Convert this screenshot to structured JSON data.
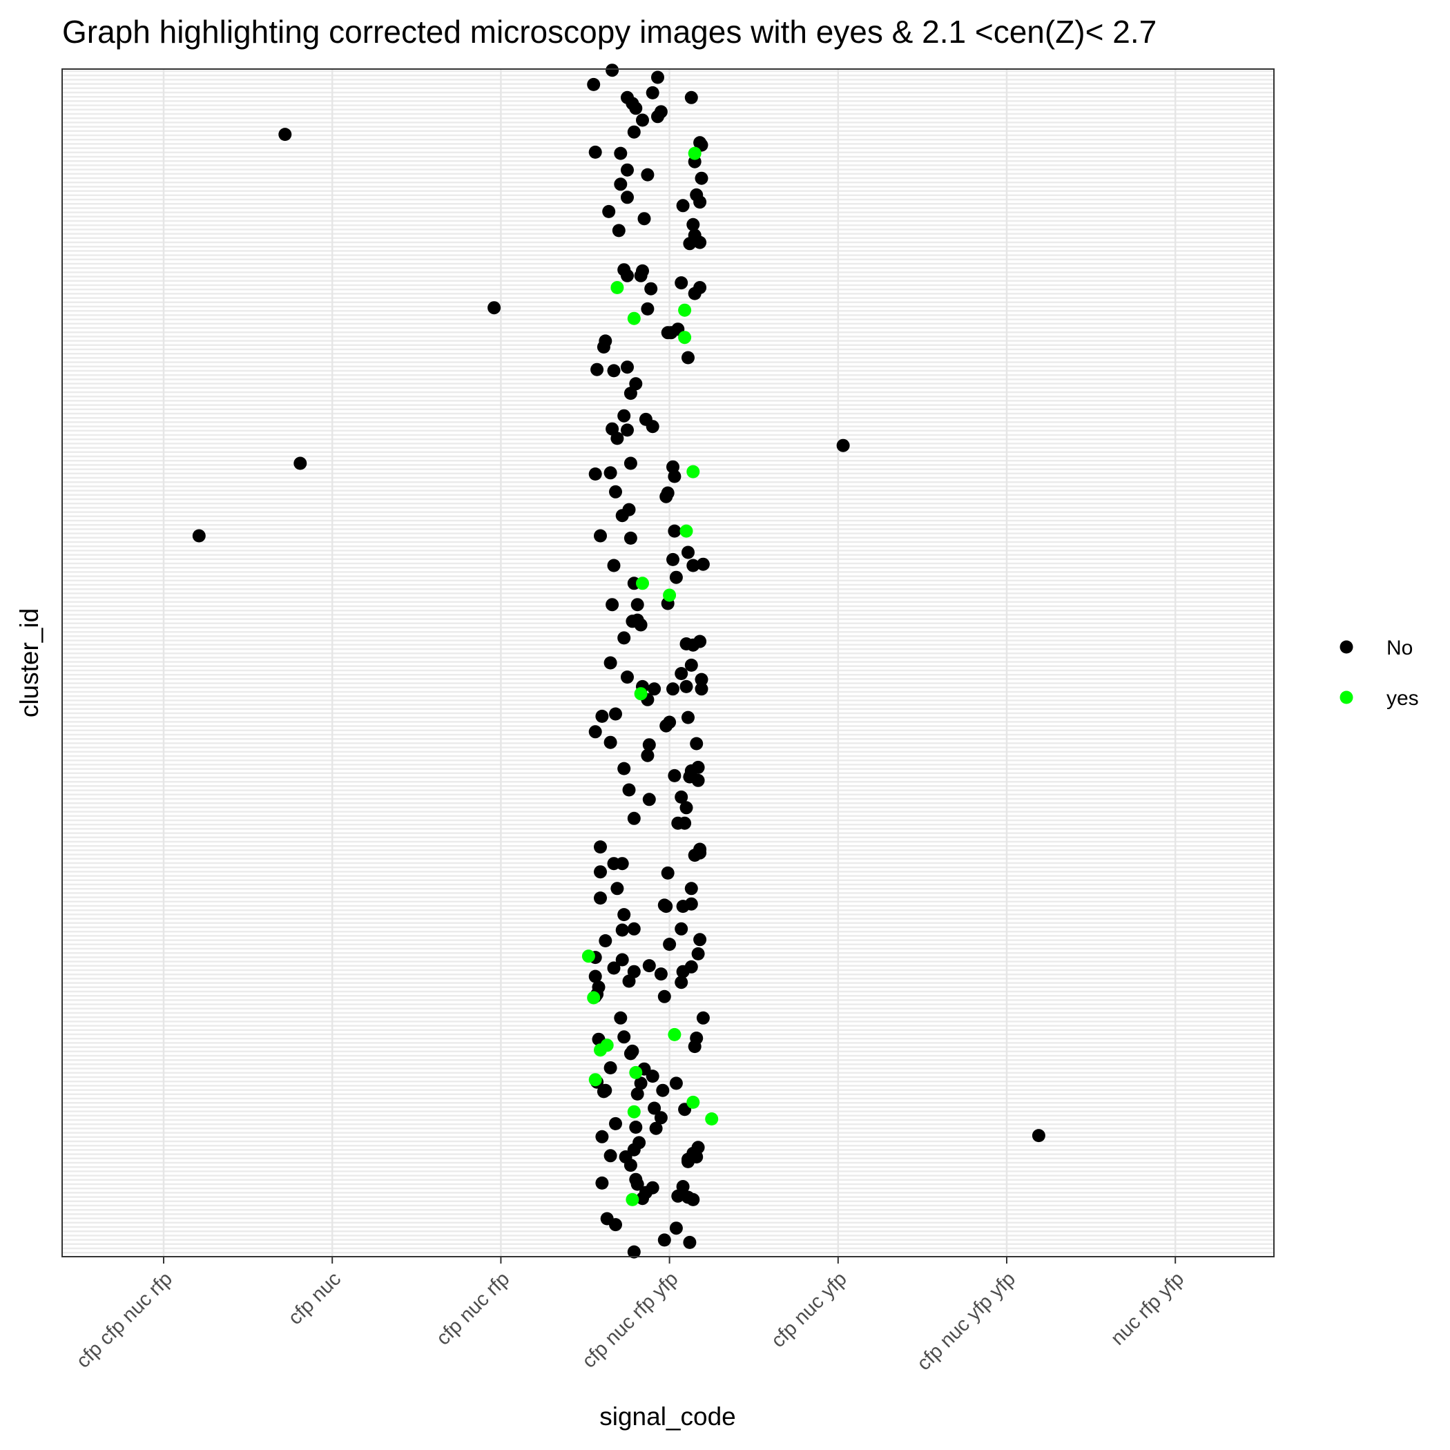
{
  "chart_data": {
    "type": "scatter",
    "title": "Graph highlighting corrected microscopy images with eyes &  2.1 <cen(Z)< 2.7",
    "xlabel": "signal_code",
    "ylabel": "cluster_id",
    "categories": [
      "cfp cfp nuc rfp",
      "cfp nuc",
      "cfp nuc rfp",
      "cfp nuc rfp yfp",
      "cfp nuc yfp",
      "cfp nuc yfp yfp",
      "nuc rfp yfp"
    ],
    "ylim": [
      0,
      1
    ],
    "y_tick_labels_shown": false,
    "grid": true,
    "legend_position": "right",
    "legend": [
      {
        "label": "No",
        "color": "#000000"
      },
      {
        "label": "yes",
        "color": "#00ff00"
      }
    ],
    "series": [
      {
        "name": "No",
        "color": "#000000",
        "points": [
          [
            0.21,
            0.607
          ],
          [
            0.72,
            0.945
          ],
          [
            0.81,
            0.668
          ],
          [
            1.96,
            0.799
          ],
          [
            2.77,
            0.668
          ],
          [
            4.03,
            0.683
          ],
          [
            5.19,
            0.102
          ],
          [
            2.66,
            0.999
          ],
          [
            2.55,
            0.987
          ],
          [
            2.93,
            0.993
          ],
          [
            2.75,
            0.976
          ],
          [
            2.9,
            0.98
          ],
          [
            2.8,
            0.967
          ],
          [
            2.95,
            0.964
          ],
          [
            2.93,
            0.96
          ],
          [
            2.78,
            0.971
          ],
          [
            2.79,
            0.947
          ],
          [
            2.84,
            0.957
          ],
          [
            3.13,
            0.976
          ],
          [
            3.18,
            0.938
          ],
          [
            3.19,
            0.936
          ],
          [
            2.56,
            0.93
          ],
          [
            2.71,
            0.929
          ],
          [
            3.15,
            0.922
          ],
          [
            2.75,
            0.915
          ],
          [
            2.71,
            0.903
          ],
          [
            2.87,
            0.911
          ],
          [
            2.75,
            0.892
          ],
          [
            3.19,
            0.908
          ],
          [
            2.64,
            0.88
          ],
          [
            3.08,
            0.885
          ],
          [
            3.16,
            0.894
          ],
          [
            3.18,
            0.888
          ],
          [
            2.85,
            0.874
          ],
          [
            3.14,
            0.869
          ],
          [
            2.7,
            0.864
          ],
          [
            3.15,
            0.86
          ],
          [
            3.18,
            0.854
          ],
          [
            3.12,
            0.853
          ],
          [
            2.73,
            0.831
          ],
          [
            2.84,
            0.83
          ],
          [
            2.83,
            0.826
          ],
          [
            2.75,
            0.826
          ],
          [
            3.07,
            0.82
          ],
          [
            3.15,
            0.811
          ],
          [
            2.89,
            0.815
          ],
          [
            3.18,
            0.816
          ],
          [
            2.87,
            0.798
          ],
          [
            3.05,
            0.781
          ],
          [
            3.01,
            0.778
          ],
          [
            3.11,
            0.757
          ],
          [
            2.57,
            0.747
          ],
          [
            2.67,
            0.746
          ],
          [
            2.61,
            0.766
          ],
          [
            2.8,
            0.735
          ],
          [
            2.62,
            0.771
          ],
          [
            2.99,
            0.778
          ],
          [
            2.75,
            0.749
          ],
          [
            2.77,
            0.727
          ],
          [
            2.73,
            0.708
          ],
          [
            2.86,
            0.705
          ],
          [
            2.66,
            0.697
          ],
          [
            2.75,
            0.696
          ],
          [
            2.69,
            0.689
          ],
          [
            2.9,
            0.699
          ],
          [
            3.02,
            0.665
          ],
          [
            2.56,
            0.659
          ],
          [
            2.65,
            0.66
          ],
          [
            2.68,
            0.644
          ],
          [
            2.76,
            0.629
          ],
          [
            2.72,
            0.624
          ],
          [
            2.77,
            0.605
          ],
          [
            2.59,
            0.607
          ],
          [
            3.03,
            0.611
          ],
          [
            3.03,
            0.657
          ],
          [
            2.98,
            0.64
          ],
          [
            2.99,
            0.643
          ],
          [
            3.11,
            0.593
          ],
          [
            3.14,
            0.582
          ],
          [
            3.02,
            0.587
          ],
          [
            2.67,
            0.582
          ],
          [
            3.04,
            0.572
          ],
          [
            2.79,
            0.567
          ],
          [
            3.2,
            0.583
          ],
          [
            2.81,
            0.549
          ],
          [
            2.66,
            0.549
          ],
          [
            2.99,
            0.55
          ],
          [
            2.81,
            0.536
          ],
          [
            2.83,
            0.532
          ],
          [
            2.78,
            0.535
          ],
          [
            2.73,
            0.521
          ],
          [
            3.14,
            0.515
          ],
          [
            3.1,
            0.516
          ],
          [
            3.07,
            0.491
          ],
          [
            3.18,
            0.518
          ],
          [
            3.13,
            0.498
          ],
          [
            2.65,
            0.5
          ],
          [
            2.75,
            0.488
          ],
          [
            3.19,
            0.486
          ],
          [
            3.19,
            0.478
          ],
          [
            3.1,
            0.48
          ],
          [
            2.91,
            0.478
          ],
          [
            2.84,
            0.48
          ],
          [
            2.87,
            0.469
          ],
          [
            3.02,
            0.478
          ],
          [
            3.0,
            0.45
          ],
          [
            2.6,
            0.455
          ],
          [
            2.68,
            0.457
          ],
          [
            2.56,
            0.442
          ],
          [
            2.65,
            0.433
          ],
          [
            2.88,
            0.431
          ],
          [
            2.87,
            0.422
          ],
          [
            3.16,
            0.432
          ],
          [
            3.17,
            0.412
          ],
          [
            3.13,
            0.409
          ],
          [
            2.73,
            0.411
          ],
          [
            2.76,
            0.393
          ],
          [
            3.03,
            0.405
          ],
          [
            3.17,
            0.401
          ],
          [
            2.98,
            0.447
          ],
          [
            3.11,
            0.454
          ],
          [
            3.12,
            0.404
          ],
          [
            3.07,
            0.387
          ],
          [
            2.88,
            0.385
          ],
          [
            3.1,
            0.378
          ],
          [
            2.79,
            0.369
          ],
          [
            3.05,
            0.365
          ],
          [
            3.09,
            0.365
          ],
          [
            2.59,
            0.345
          ],
          [
            2.59,
            0.324
          ],
          [
            2.72,
            0.331
          ],
          [
            2.67,
            0.331
          ],
          [
            2.69,
            0.31
          ],
          [
            3.18,
            0.34
          ],
          [
            2.99,
            0.323
          ],
          [
            3.13,
            0.297
          ],
          [
            2.97,
            0.296
          ],
          [
            2.59,
            0.302
          ],
          [
            2.62,
            0.266
          ],
          [
            2.67,
            0.243
          ],
          [
            3.08,
            0.295
          ],
          [
            3.13,
            0.31
          ],
          [
            2.72,
            0.275
          ],
          [
            2.73,
            0.288
          ],
          [
            2.98,
            0.295
          ],
          [
            3.15,
            0.338
          ],
          [
            3.18,
            0.343
          ],
          [
            2.56,
            0.252
          ],
          [
            3.0,
            0.263
          ],
          [
            3.07,
            0.276
          ],
          [
            3.13,
            0.244
          ],
          [
            2.72,
            0.25
          ],
          [
            2.79,
            0.276
          ],
          [
            3.17,
            0.255
          ],
          [
            3.18,
            0.267
          ],
          [
            2.79,
            0.24
          ],
          [
            3.07,
            0.231
          ],
          [
            2.76,
            0.232
          ],
          [
            3.08,
            0.24
          ],
          [
            2.88,
            0.245
          ],
          [
            2.56,
            0.236
          ],
          [
            2.58,
            0.227
          ],
          [
            2.56,
            0.219
          ],
          [
            2.57,
            0.221
          ],
          [
            2.95,
            0.238
          ],
          [
            2.71,
            0.201
          ],
          [
            2.97,
            0.219
          ],
          [
            3.2,
            0.201
          ],
          [
            3.16,
            0.184
          ],
          [
            2.73,
            0.185
          ],
          [
            2.77,
            0.171
          ],
          [
            2.78,
            0.173
          ],
          [
            2.58,
            0.183
          ],
          [
            2.81,
            0.137
          ],
          [
            3.15,
            0.177
          ],
          [
            2.57,
            0.147
          ],
          [
            2.65,
            0.159
          ],
          [
            2.62,
            0.14
          ],
          [
            2.85,
            0.158
          ],
          [
            2.9,
            0.152
          ],
          [
            3.04,
            0.146
          ],
          [
            2.96,
            0.14
          ],
          [
            2.83,
            0.146
          ],
          [
            2.61,
            0.139
          ],
          [
            3.09,
            0.124
          ],
          [
            2.91,
            0.125
          ],
          [
            2.95,
            0.117
          ],
          [
            2.68,
            0.112
          ],
          [
            2.8,
            0.109
          ],
          [
            2.92,
            0.108
          ],
          [
            2.82,
            0.096
          ],
          [
            3.17,
            0.092
          ],
          [
            2.65,
            0.085
          ],
          [
            2.6,
            0.101
          ],
          [
            2.74,
            0.084
          ],
          [
            2.79,
            0.09
          ],
          [
            2.77,
            0.077
          ],
          [
            3.14,
            0.087
          ],
          [
            3.11,
            0.08
          ],
          [
            3.11,
            0.082
          ],
          [
            3.16,
            0.084
          ],
          [
            2.86,
            0.054
          ],
          [
            2.8,
            0.065
          ],
          [
            2.9,
            0.058
          ],
          [
            2.84,
            0.049
          ],
          [
            2.81,
            0.061
          ],
          [
            2.6,
            0.062
          ],
          [
            3.05,
            0.051
          ],
          [
            3.08,
            0.059
          ],
          [
            2.63,
            0.032
          ],
          [
            2.68,
            0.027
          ],
          [
            2.97,
            0.014
          ],
          [
            2.79,
            0.004
          ],
          [
            3.12,
            0.012
          ],
          [
            3.04,
            0.024
          ],
          [
            3.11,
            0.05
          ],
          [
            3.14,
            0.048
          ]
        ]
      },
      {
        "name": "yes",
        "color": "#00ff00",
        "points": [
          [
            3.15,
            0.929
          ],
          [
            2.69,
            0.816
          ],
          [
            3.09,
            0.797
          ],
          [
            2.79,
            0.79
          ],
          [
            3.09,
            0.774
          ],
          [
            3.14,
            0.661
          ],
          [
            3.1,
            0.611
          ],
          [
            2.84,
            0.567
          ],
          [
            3.0,
            0.557
          ],
          [
            2.83,
            0.474
          ],
          [
            2.52,
            0.253
          ],
          [
            2.55,
            0.218
          ],
          [
            3.03,
            0.187
          ],
          [
            2.59,
            0.174
          ],
          [
            2.63,
            0.178
          ],
          [
            2.8,
            0.155
          ],
          [
            2.56,
            0.149
          ],
          [
            3.14,
            0.13
          ],
          [
            2.79,
            0.122
          ],
          [
            3.25,
            0.116
          ],
          [
            2.78,
            0.048
          ]
        ]
      }
    ]
  }
}
